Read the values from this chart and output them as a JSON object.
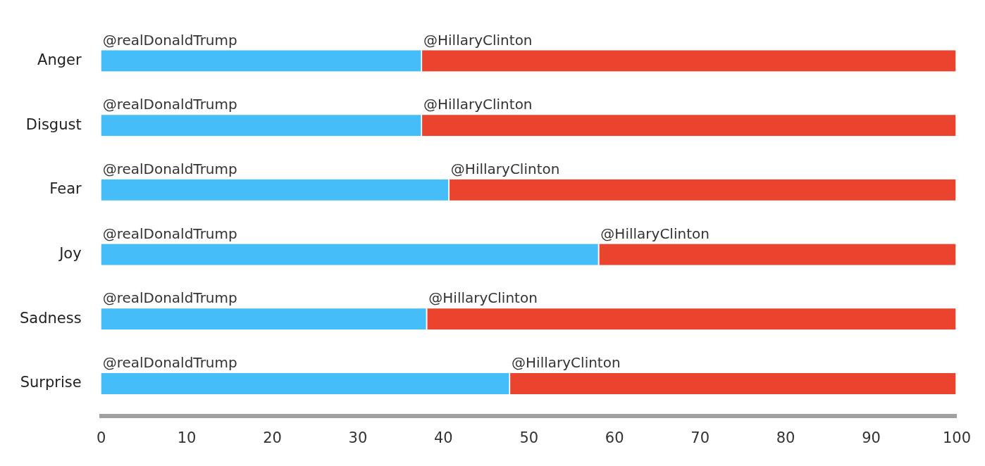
{
  "chart_data": {
    "type": "bar",
    "orientation": "horizontal",
    "stacked": true,
    "categories": [
      "Anger",
      "Disgust",
      "Fear",
      "Joy",
      "Sadness",
      "Surprise"
    ],
    "series": [
      {
        "name": "@realDonaldTrump",
        "color": "#45bdf8",
        "values": [
          37.5,
          37.5,
          40.7,
          58.2,
          38.1,
          47.8
        ]
      },
      {
        "name": "@HillaryClinton",
        "color": "#ea432e",
        "values": [
          62.5,
          62.5,
          59.3,
          41.8,
          61.9,
          52.2
        ]
      }
    ],
    "xlim": [
      0,
      100
    ],
    "xticks": [
      0,
      10,
      20,
      30,
      40,
      50,
      60,
      70,
      80,
      90,
      100
    ],
    "grid": false,
    "legend": false
  }
}
